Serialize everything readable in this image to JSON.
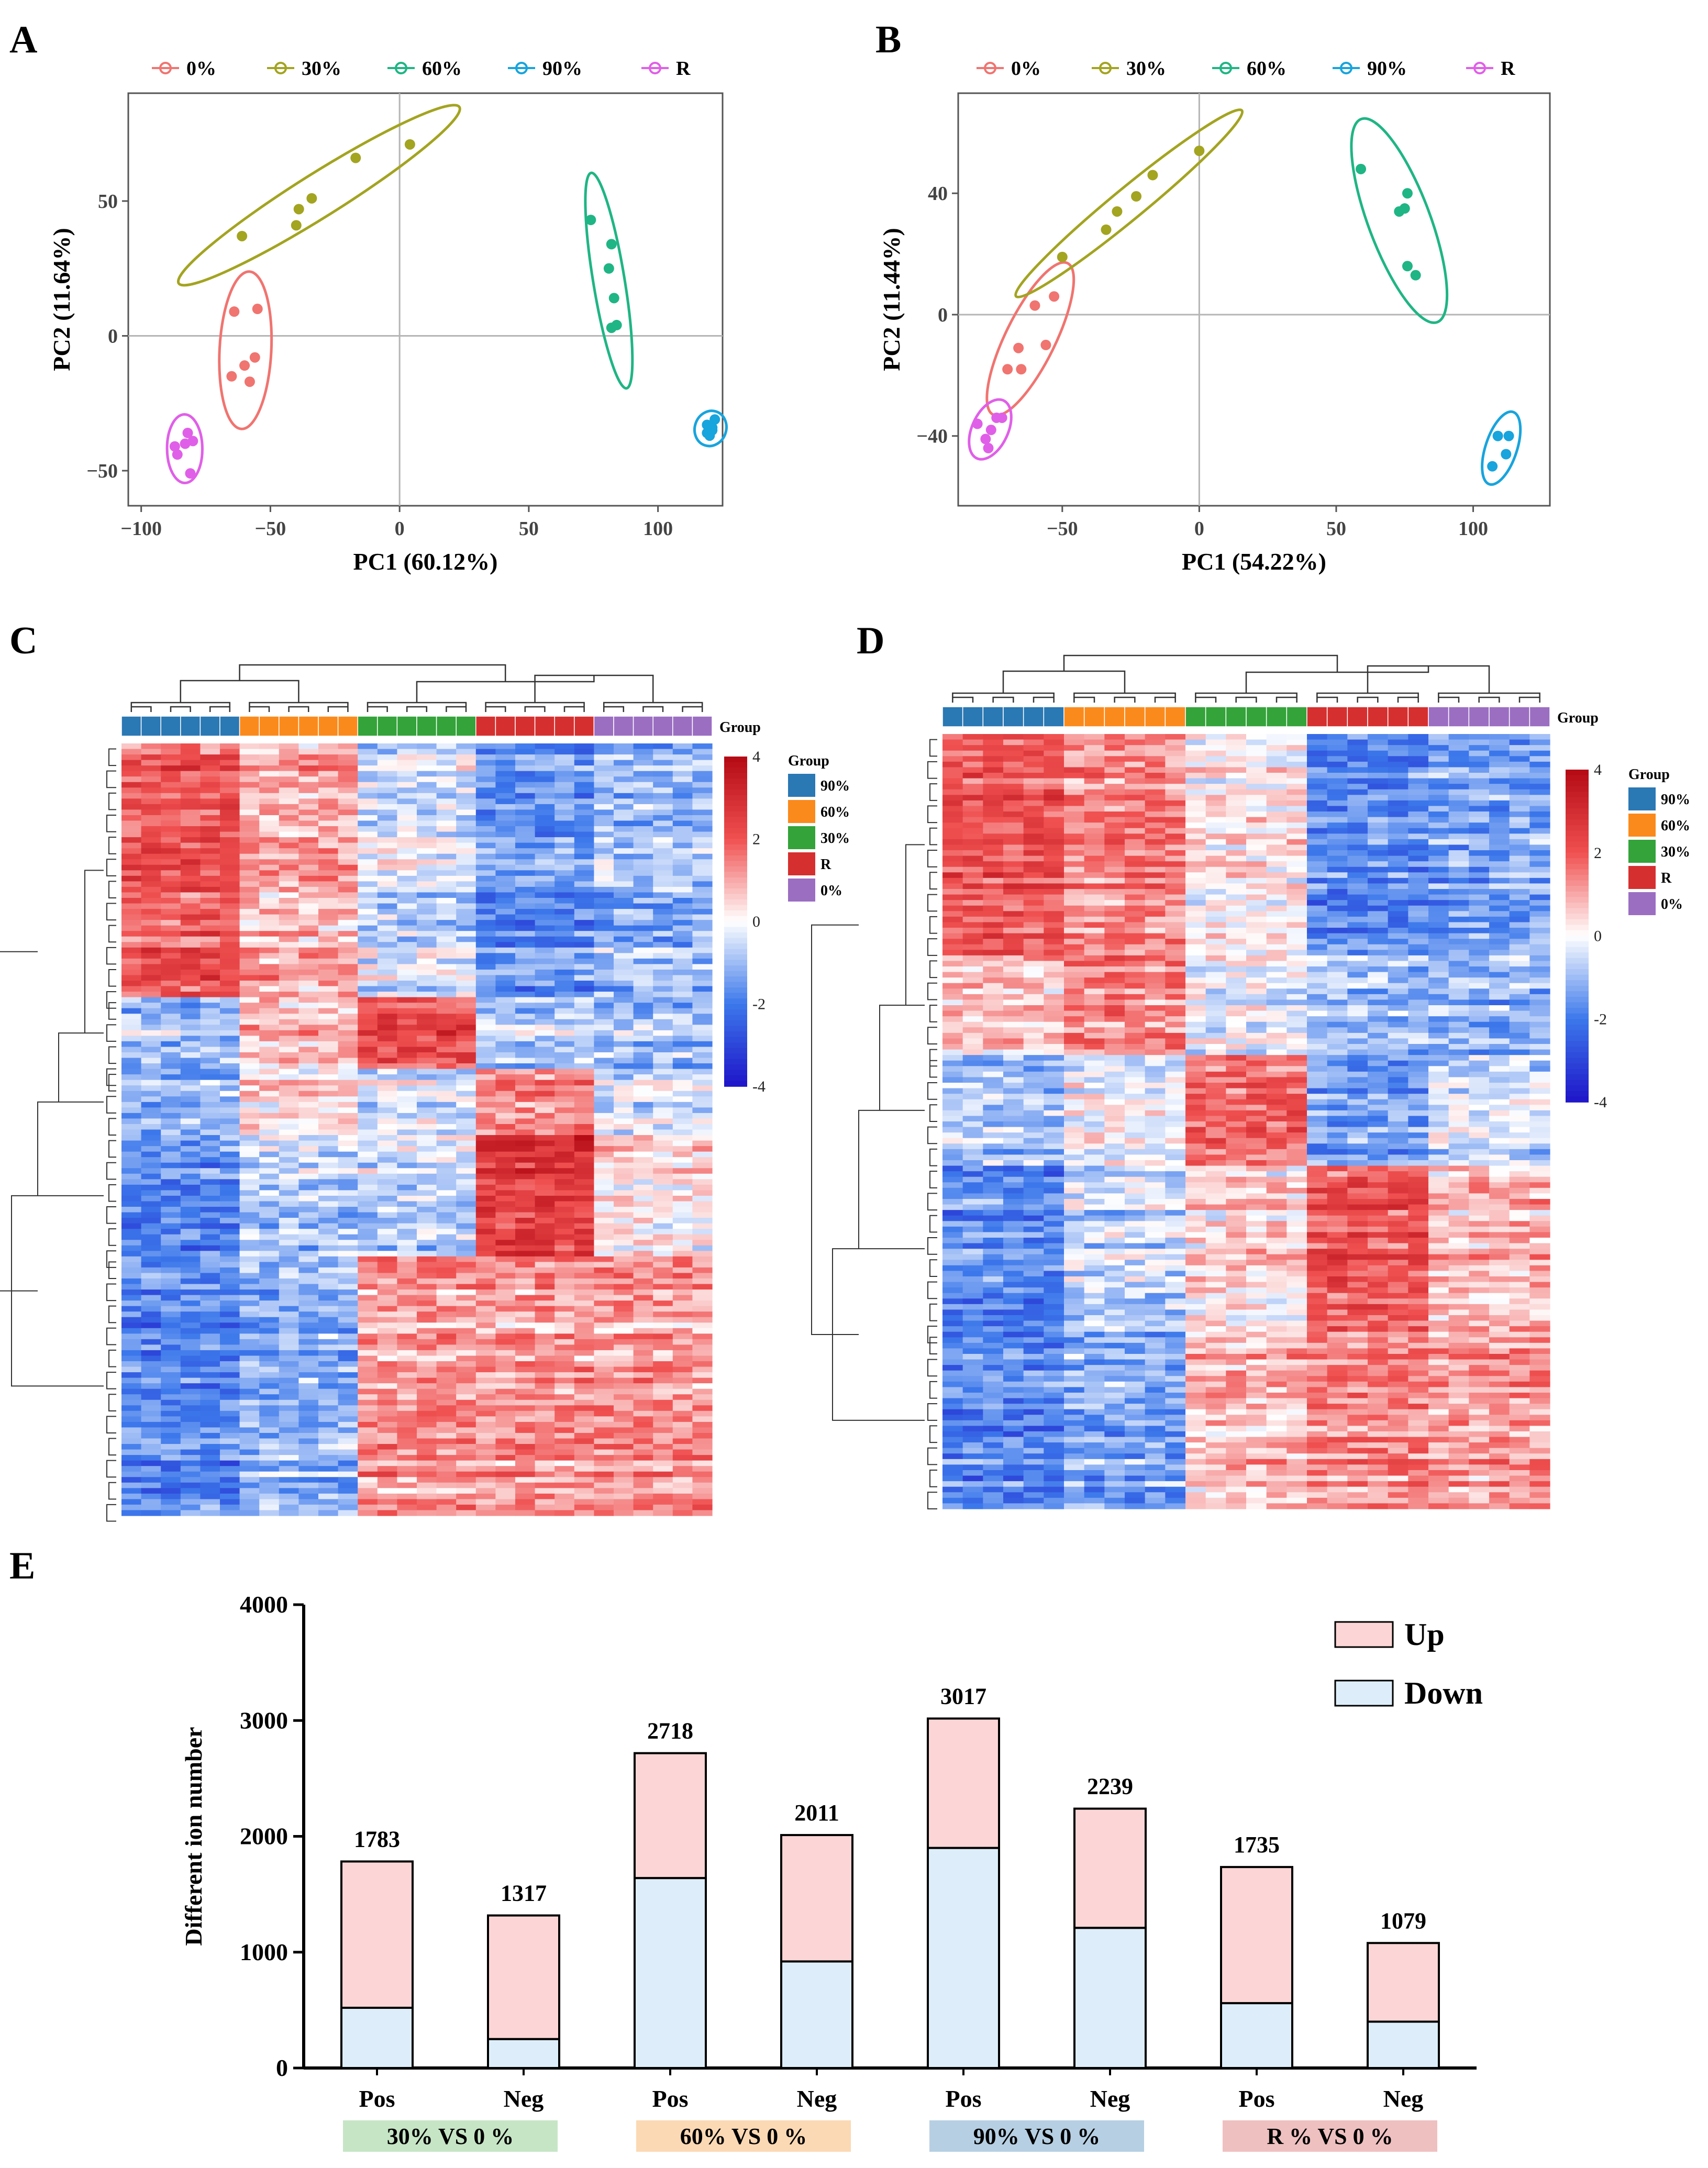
{
  "panel_labels": {
    "a": "A",
    "b": "B",
    "c": "C",
    "d": "D",
    "e": "E"
  },
  "pca_legend": [
    {
      "label": "0%",
      "color": "#f07470"
    },
    {
      "label": "30%",
      "color": "#a3a420"
    },
    {
      "label": "60%",
      "color": "#1fb584"
    },
    {
      "label": "90%",
      "color": "#18a4dd"
    },
    {
      "label": "R",
      "color": "#e05fe8"
    }
  ],
  "heatmap_groups": [
    {
      "label": "90%",
      "color": "#2a78b4"
    },
    {
      "label": "60%",
      "color": "#fb8a1c"
    },
    {
      "label": "30%",
      "color": "#33a33a"
    },
    {
      "label": "R",
      "color": "#d62f2f"
    },
    {
      "label": "0%",
      "color": "#9b6ec2"
    }
  ],
  "heatmap_labels": {
    "group_title": "Group",
    "colorbar_ticks": [
      "4",
      "2",
      "0",
      "-2",
      "-4"
    ]
  },
  "chart_data": [
    {
      "type": "scatter",
      "panel": "A",
      "xlabel": "PC1 (60.12%)",
      "ylabel": "PC2 (11.64%)",
      "xlim": [
        -105,
        125
      ],
      "ylim": [
        -63,
        90
      ],
      "xticks": [
        -100,
        -50,
        0,
        50,
        100
      ],
      "yticks": [
        -50,
        0,
        50
      ],
      "series": [
        {
          "name": "0%",
          "points": [
            [
              -64,
              9
            ],
            [
              -55,
              10
            ],
            [
              -56,
              -8
            ],
            [
              -60,
              -11
            ],
            [
              -65,
              -15
            ],
            [
              -58,
              -17
            ]
          ]
        },
        {
          "name": "30%",
          "points": [
            [
              -61,
              37
            ],
            [
              -40,
              41
            ],
            [
              -34,
              51
            ],
            [
              -39,
              47
            ],
            [
              -17,
              66
            ],
            [
              4,
              71
            ]
          ]
        },
        {
          "name": "60%",
          "points": [
            [
              74,
              43
            ],
            [
              82,
              34
            ],
            [
              81,
              25
            ],
            [
              83,
              14
            ],
            [
              82,
              3
            ],
            [
              84,
              4
            ]
          ]
        },
        {
          "name": "90%",
          "points": [
            [
              119,
              -33
            ],
            [
              121,
              -35
            ],
            [
              120,
              -37
            ],
            [
              122,
              -31
            ],
            [
              119,
              -36
            ],
            [
              121,
              -34
            ]
          ]
        },
        {
          "name": "R",
          "points": [
            [
              -87,
              -41
            ],
            [
              -82,
              -36
            ],
            [
              -83,
              -40
            ],
            [
              -80,
              -39
            ],
            [
              -86,
              -44
            ],
            [
              -81,
              -51
            ]
          ]
        }
      ]
    },
    {
      "type": "scatter",
      "panel": "B",
      "xlabel": "PC1 (54.22%)",
      "ylabel": "PC2 (11.44%)",
      "xlim": [
        -88,
        128
      ],
      "ylim": [
        -63,
        73
      ],
      "xticks": [
        -50,
        0,
        50,
        100
      ],
      "yticks": [
        -40,
        0,
        40
      ],
      "series": [
        {
          "name": "0%",
          "points": [
            [
              -66,
              -11
            ],
            [
              -60,
              3
            ],
            [
              -53,
              6
            ],
            [
              -56,
              -10
            ],
            [
              -70,
              -18
            ],
            [
              -65,
              -18
            ]
          ]
        },
        {
          "name": "30%",
          "points": [
            [
              -50,
              19
            ],
            [
              -34,
              28
            ],
            [
              -30,
              34
            ],
            [
              -23,
              39
            ],
            [
              -17,
              46
            ],
            [
              0,
              54
            ]
          ]
        },
        {
          "name": "60%",
          "points": [
            [
              59,
              48
            ],
            [
              73,
              34
            ],
            [
              76,
              40
            ],
            [
              75,
              35
            ],
            [
              76,
              16
            ],
            [
              79,
              13
            ]
          ]
        },
        {
          "name": "90%",
          "points": [
            [
              109,
              -40
            ],
            [
              113,
              -40
            ],
            [
              112,
              -46
            ],
            [
              107,
              -50
            ]
          ]
        },
        {
          "name": "R",
          "points": [
            [
              -81,
              -36
            ],
            [
              -76,
              -38
            ],
            [
              -74,
              -34
            ],
            [
              -72,
              -34
            ],
            [
              -77,
              -44
            ],
            [
              -78,
              -41
            ]
          ]
        }
      ]
    },
    {
      "type": "bar",
      "panel": "E",
      "stacked": true,
      "ylabel": "Different ion number",
      "ylim": [
        0,
        4000
      ],
      "yticks": [
        0,
        1000,
        2000,
        3000,
        4000
      ],
      "categories": [
        "Pos",
        "Neg",
        "Pos",
        "Neg",
        "Pos",
        "Neg",
        "Pos",
        "Neg"
      ],
      "totals": [
        1783,
        1317,
        2718,
        2011,
        3017,
        2239,
        1735,
        1079
      ],
      "series": [
        {
          "name": "Down",
          "color": "#ddeefa",
          "values": [
            520,
            250,
            1640,
            920,
            1900,
            1210,
            560,
            400
          ]
        },
        {
          "name": "Up",
          "color": "#fcd6d6",
          "values": [
            1263,
            1067,
            1078,
            1091,
            1117,
            1029,
            1175,
            679
          ]
        }
      ],
      "comparisons": [
        {
          "label": "30% VS 0 %",
          "color": "#c6e5c5"
        },
        {
          "label": "60% VS 0 %",
          "color": "#fbd9b4"
        },
        {
          "label": "90% VS 0 %",
          "color": "#b6cfe2"
        },
        {
          "label": "R % VS 0 %",
          "color": "#efc0c0"
        }
      ]
    }
  ]
}
